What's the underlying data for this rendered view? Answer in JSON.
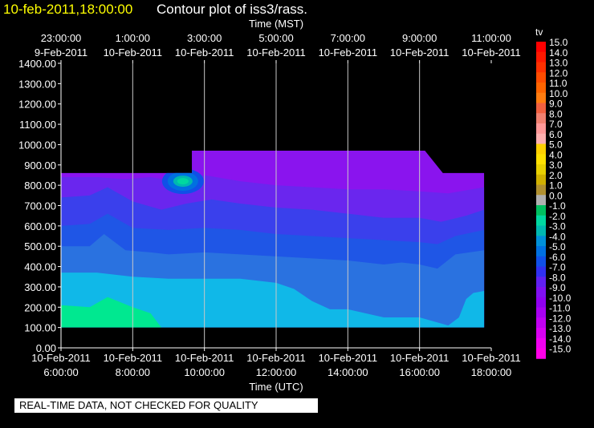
{
  "header": {
    "date_label": "10-feb-2011,18:00:00",
    "title": "Contour plot of iss3/rass."
  },
  "chart_data": {
    "type": "heatmap",
    "top_axis": {
      "title": "Time (MST)",
      "ticks": [
        {
          "time": "23:00:00",
          "date": "9-Feb-2011"
        },
        {
          "time": "1:00:00",
          "date": "10-Feb-2011"
        },
        {
          "time": "3:00:00",
          "date": "10-Feb-2011"
        },
        {
          "time": "5:00:00",
          "date": "10-Feb-2011"
        },
        {
          "time": "7:00:00",
          "date": "10-Feb-2011"
        },
        {
          "time": "9:00:00",
          "date": "10-Feb-2011"
        },
        {
          "time": "11:00:00",
          "date": "10-Feb-2011"
        }
      ]
    },
    "bottom_axis": {
      "title": "Time (UTC)",
      "ticks": [
        {
          "date": "10-Feb-2011",
          "time": "6:00:00"
        },
        {
          "date": "10-Feb-2011",
          "time": "8:00:00"
        },
        {
          "date": "10-Feb-2011",
          "time": "10:00:00"
        },
        {
          "date": "10-Feb-2011",
          "time": "12:00:00"
        },
        {
          "date": "10-Feb-2011",
          "time": "14:00:00"
        },
        {
          "date": "10-Feb-2011",
          "time": "16:00:00"
        },
        {
          "date": "10-Feb-2011",
          "time": "18:00:00"
        }
      ],
      "range_utc_hours": [
        6,
        18
      ]
    },
    "y_axis": {
      "ticks": [
        "1400.00",
        "1300.00",
        "1200.00",
        "1100.00",
        "1000.00",
        "900.00",
        "800.00",
        "700.00",
        "600.00",
        "500.00",
        "400.00",
        "300.00",
        "200.00",
        "100.00",
        "0.00"
      ],
      "range": [
        0,
        1400
      ]
    },
    "grid": true,
    "colorbar": {
      "variable": "tv",
      "ticks": [
        "15.0",
        "14.0",
        "13.0",
        "12.0",
        "11.0",
        "10.0",
        "9.0",
        "8.0",
        "7.0",
        "6.0",
        "5.0",
        "4.0",
        "3.0",
        "2.0",
        "1.0",
        "0.0",
        "-1.0",
        "-2.0",
        "-3.0",
        "-4.0",
        "-5.0",
        "-6.0",
        "-7.0",
        "-8.0",
        "-9.0",
        "-10.0",
        "-11.0",
        "-12.0",
        "-13.0",
        "-14.0",
        "-15.0"
      ],
      "colors": [
        "#ff0000",
        "#ff1800",
        "#ff3000",
        "#ff4c00",
        "#ff6400",
        "#ff7c10",
        "#f06040",
        "#f08070",
        "#ff9898",
        "#ffb0b0",
        "#ffd000",
        "#ffe000",
        "#e8d000",
        "#d0b000",
        "#b09030",
        "#b0b0b0",
        "#00c060",
        "#00d8a0",
        "#00b8b0",
        "#0090d8",
        "#0070e0",
        "#1050e8",
        "#3030f0",
        "#6020f0",
        "#8010f0",
        "#9000f0",
        "#a800f0",
        "#c000f0",
        "#d800f0",
        "#f000f0",
        "#ff00e8"
      ]
    },
    "surface_height": 100,
    "data_top_profile": [
      {
        "utc": 6.0,
        "height": 860
      },
      {
        "utc": 9.65,
        "height": 860
      },
      {
        "utc": 9.65,
        "height": 970
      },
      {
        "utc": 16.15,
        "height": 970
      },
      {
        "utc": 16.65,
        "height": 860
      },
      {
        "utc": 17.8,
        "height": 860
      }
    ],
    "bands": [
      {
        "value": -2,
        "color": "#00e890",
        "top": [
          [
            6,
            210
          ],
          [
            6.8,
            200
          ],
          [
            7.3,
            250
          ],
          [
            8,
            200
          ],
          [
            8.5,
            170
          ],
          [
            8.8,
            100
          ]
        ]
      },
      {
        "value": -3,
        "color": "#10b8e8",
        "top": [
          [
            6,
            370
          ],
          [
            7,
            370
          ],
          [
            8,
            350
          ],
          [
            9,
            340
          ],
          [
            10,
            340
          ],
          [
            11,
            340
          ],
          [
            12,
            320
          ],
          [
            12.5,
            290
          ],
          [
            13,
            230
          ],
          [
            13.5,
            190
          ],
          [
            14,
            190
          ],
          [
            15,
            150
          ],
          [
            15.5,
            150
          ],
          [
            16,
            150
          ],
          [
            16.8,
            110
          ],
          [
            17.1,
            150
          ],
          [
            17.3,
            240
          ],
          [
            17.5,
            270
          ],
          [
            17.8,
            280
          ]
        ]
      },
      {
        "value": -4,
        "color": "#2a72e0",
        "top": [
          [
            6,
            500
          ],
          [
            6.8,
            500
          ],
          [
            7.2,
            560
          ],
          [
            7.8,
            480
          ],
          [
            8.5,
            470
          ],
          [
            9,
            460
          ],
          [
            10,
            470
          ],
          [
            11,
            460
          ],
          [
            12,
            450
          ],
          [
            13,
            440
          ],
          [
            14,
            430
          ],
          [
            14.5,
            420
          ],
          [
            15,
            410
          ],
          [
            15.5,
            420
          ],
          [
            16,
            410
          ],
          [
            16.5,
            390
          ],
          [
            17,
            460
          ],
          [
            17.8,
            480
          ]
        ]
      },
      {
        "value": -5,
        "color": "#1f56e6",
        "top": [
          [
            6,
            600
          ],
          [
            6.8,
            610
          ],
          [
            7.3,
            660
          ],
          [
            8,
            590
          ],
          [
            9,
            580
          ],
          [
            10,
            590
          ],
          [
            11,
            580
          ],
          [
            12,
            560
          ],
          [
            13,
            550
          ],
          [
            14,
            540
          ],
          [
            15,
            530
          ],
          [
            16,
            520
          ],
          [
            16.5,
            510
          ],
          [
            17,
            550
          ],
          [
            17.8,
            580
          ]
        ]
      },
      {
        "value": -6,
        "color": "#3a40ec",
        "top": [
          [
            6,
            740
          ],
          [
            6.8,
            750
          ],
          [
            7.3,
            790
          ],
          [
            8,
            720
          ],
          [
            8.8,
            680
          ],
          [
            9.5,
            710
          ],
          [
            10.2,
            730
          ],
          [
            11,
            710
          ],
          [
            12,
            690
          ],
          [
            13,
            680
          ],
          [
            14,
            660
          ],
          [
            15,
            640
          ],
          [
            16,
            640
          ],
          [
            16.6,
            620
          ],
          [
            17.3,
            650
          ],
          [
            17.8,
            680
          ]
        ]
      },
      {
        "value": -7,
        "color": "#6a26ee",
        "top": [
          [
            6,
            840
          ],
          [
            7,
            840
          ],
          [
            7.8,
            830
          ],
          [
            8.5,
            840
          ],
          [
            9.2,
            820
          ],
          [
            10,
            850
          ],
          [
            11,
            820
          ],
          [
            12,
            800
          ],
          [
            13,
            790
          ],
          [
            14,
            780
          ],
          [
            15,
            780
          ],
          [
            16,
            770
          ],
          [
            16.8,
            760
          ],
          [
            17.8,
            790
          ]
        ]
      },
      {
        "value": -8,
        "color": "#8a14ee",
        "top": [
          [
            9.65,
            970
          ],
          [
            16.15,
            970
          ],
          [
            16.65,
            860
          ]
        ]
      }
    ],
    "anomaly": {
      "utc": 9.4,
      "height": 820,
      "values": [
        -2,
        -3,
        -5,
        -6
      ]
    }
  },
  "footer": {
    "quality_note": "REAL-TIME DATA, NOT CHECKED FOR QUALITY"
  }
}
